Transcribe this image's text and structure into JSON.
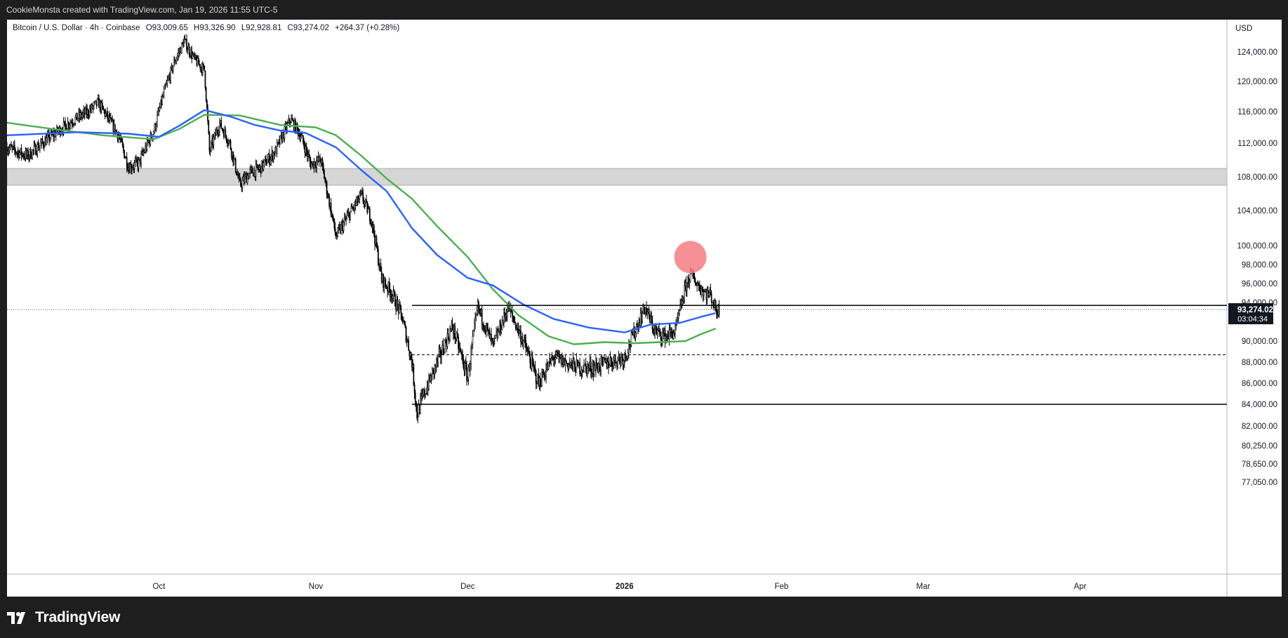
{
  "header": {
    "attribution": "CookieMonsta created with TradingView.com, Jan 19, 2026 11:55 UTC-5"
  },
  "legend": {
    "symbol": "Bitcoin / U.S. Dollar · 4h · Coinbase",
    "open": "O93,009.65",
    "high": "H93,326.90",
    "low": "L92,928.81",
    "close": "C93,274.02",
    "change": "+264.37 (+0.28%)"
  },
  "footer": {
    "brand": "TradingView"
  },
  "chart_data": {
    "type": "candlestick",
    "currency_label": "USD",
    "y_ticks": [
      "124,000.00",
      "120,000.00",
      "116,000.00",
      "112,000.00",
      "108,000.00",
      "104,000.00",
      "100,000.00",
      "98,000.00",
      "96,000.00",
      "94,000.00",
      "90,000.00",
      "88,000.00",
      "86,000.00",
      "84,000.00",
      "82,000.00",
      "80,250.00",
      "78,650.00",
      "77,050.00"
    ],
    "x_ticks": [
      "Oct",
      "Nov",
      "Dec",
      "2026",
      "Feb",
      "Mar",
      "Apr"
    ],
    "last_price": {
      "value": "93,274.02",
      "countdown": "03:04:34"
    },
    "x_axis": {
      "start": "2025-09-01",
      "end": "2026-04-30"
    },
    "price_path": [
      [
        "2025-09-01",
        111500
      ],
      [
        "2025-09-05",
        110500
      ],
      [
        "2025-09-09",
        112500
      ],
      [
        "2025-09-13",
        114500
      ],
      [
        "2025-09-17",
        116000
      ],
      [
        "2025-09-19",
        117200
      ],
      [
        "2025-09-23",
        113000
      ],
      [
        "2025-09-25",
        109200
      ],
      [
        "2025-09-27",
        109600
      ],
      [
        "2025-09-30",
        113500
      ],
      [
        "2025-10-02",
        118500
      ],
      [
        "2025-10-04",
        122500
      ],
      [
        "2025-10-06",
        125500
      ],
      [
        "2025-10-08",
        123000
      ],
      [
        "2025-10-10",
        121500
      ],
      [
        "2025-10-11",
        111000
      ],
      [
        "2025-10-13",
        114500
      ],
      [
        "2025-10-15",
        112000
      ],
      [
        "2025-10-17",
        107000
      ],
      [
        "2025-10-19",
        108500
      ],
      [
        "2025-10-21",
        109000
      ],
      [
        "2025-10-24",
        111000
      ],
      [
        "2025-10-27",
        115000
      ],
      [
        "2025-10-29",
        113000
      ],
      [
        "2025-10-31",
        109500
      ],
      [
        "2025-11-02",
        110000
      ],
      [
        "2025-11-04",
        104000
      ],
      [
        "2025-11-05",
        101000
      ],
      [
        "2025-11-07",
        103000
      ],
      [
        "2025-11-10",
        105800
      ],
      [
        "2025-11-12",
        103000
      ],
      [
        "2025-11-14",
        96500
      ],
      [
        "2025-11-16",
        95000
      ],
      [
        "2025-11-18",
        92500
      ],
      [
        "2025-11-20",
        88000
      ],
      [
        "2025-11-21",
        83000
      ],
      [
        "2025-11-22",
        84500
      ],
      [
        "2025-11-25",
        88000
      ],
      [
        "2025-11-28",
        91500
      ],
      [
        "2025-12-01",
        86500
      ],
      [
        "2025-12-03",
        93500
      ],
      [
        "2025-12-06",
        89500
      ],
      [
        "2025-12-09",
        93500
      ],
      [
        "2025-12-12",
        90000
      ],
      [
        "2025-12-15",
        86000
      ],
      [
        "2025-12-18",
        88500
      ],
      [
        "2025-12-20",
        88000
      ],
      [
        "2025-12-23",
        87500
      ],
      [
        "2025-12-26",
        87500
      ],
      [
        "2025-12-29",
        88000
      ],
      [
        "2026-01-01",
        88500
      ],
      [
        "2026-01-03",
        91000
      ],
      [
        "2026-01-05",
        93500
      ],
      [
        "2026-01-07",
        91000
      ],
      [
        "2026-01-09",
        90500
      ],
      [
        "2026-01-11",
        91000
      ],
      [
        "2026-01-13",
        95500
      ],
      [
        "2026-01-14",
        97000
      ],
      [
        "2026-01-16",
        95500
      ],
      [
        "2026-01-17",
        95000
      ],
      [
        "2026-01-18",
        94800
      ],
      [
        "2026-01-19",
        93274
      ]
    ],
    "ma_blue": [
      [
        "2025-09-01",
        113000
      ],
      [
        "2025-09-15",
        113400
      ],
      [
        "2025-09-25",
        113200
      ],
      [
        "2025-10-01",
        112800
      ],
      [
        "2025-10-05",
        114200
      ],
      [
        "2025-10-10",
        116200
      ],
      [
        "2025-10-15",
        115400
      ],
      [
        "2025-10-20",
        114300
      ],
      [
        "2025-10-25",
        113600
      ],
      [
        "2025-10-30",
        113300
      ],
      [
        "2025-11-05",
        111500
      ],
      [
        "2025-11-10",
        108800
      ],
      [
        "2025-11-15",
        106300
      ],
      [
        "2025-11-20",
        102000
      ],
      [
        "2025-11-25",
        99000
      ],
      [
        "2025-12-01",
        96600
      ],
      [
        "2025-12-06",
        95800
      ],
      [
        "2025-12-12",
        93800
      ],
      [
        "2025-12-18",
        92300
      ],
      [
        "2025-12-25",
        91400
      ],
      [
        "2026-01-01",
        90900
      ],
      [
        "2026-01-06",
        91700
      ],
      [
        "2026-01-12",
        91900
      ],
      [
        "2026-01-16",
        92500
      ],
      [
        "2026-01-19",
        92900
      ]
    ],
    "ma_green": [
      [
        "2025-09-01",
        114600
      ],
      [
        "2025-09-10",
        113800
      ],
      [
        "2025-09-20",
        113000
      ],
      [
        "2025-09-30",
        112500
      ],
      [
        "2025-10-05",
        113800
      ],
      [
        "2025-10-10",
        115600
      ],
      [
        "2025-10-17",
        115500
      ],
      [
        "2025-10-25",
        114300
      ],
      [
        "2025-11-01",
        114000
      ],
      [
        "2025-11-05",
        113000
      ],
      [
        "2025-11-10",
        110500
      ],
      [
        "2025-11-15",
        107800
      ],
      [
        "2025-11-20",
        105400
      ],
      [
        "2025-11-25",
        102200
      ],
      [
        "2025-12-01",
        98800
      ],
      [
        "2025-12-06",
        95400
      ],
      [
        "2025-12-11",
        92700
      ],
      [
        "2025-12-17",
        90500
      ],
      [
        "2025-12-22",
        89700
      ],
      [
        "2025-12-28",
        89900
      ],
      [
        "2026-01-03",
        89800
      ],
      [
        "2026-01-08",
        89900
      ],
      [
        "2026-01-13",
        90000
      ],
      [
        "2026-01-16",
        90700
      ],
      [
        "2026-01-19",
        91300
      ]
    ],
    "resistance_zone": [
      107000,
      109000
    ],
    "levels": [
      {
        "price": 93700,
        "from": "2025-11-20",
        "style": "solid"
      },
      {
        "price": 88700,
        "from": "2025-11-20",
        "style": "dashed"
      },
      {
        "price": 84000,
        "from": "2025-11-20",
        "style": "solid"
      }
    ],
    "current_price_line": 93274,
    "highlight": {
      "date": "2026-01-14",
      "price": 98500,
      "color": "#f47c83"
    }
  }
}
